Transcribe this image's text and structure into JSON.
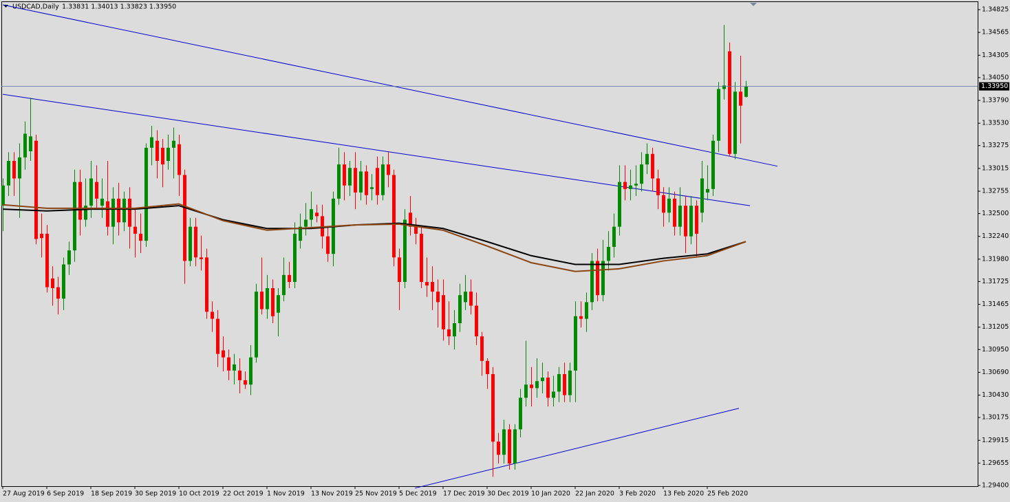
{
  "chart_data": {
    "type": "candlestick",
    "symbol": "USDCAD,Daily",
    "quote": "1.33831 1.34013 1.33823 1.33950",
    "current_price": {
      "value": 1.3395,
      "label": "1.33950"
    },
    "categories": [
      "27 Aug 2019",
      null,
      null,
      null,
      null,
      null,
      null,
      null,
      "6 Sep 2019",
      null,
      null,
      null,
      null,
      null,
      null,
      null,
      "18 Sep 2019",
      null,
      null,
      null,
      null,
      null,
      null,
      null,
      "30 Sep 2019",
      null,
      null,
      null,
      null,
      null,
      null,
      null,
      "10 Oct 2019",
      null,
      null,
      null,
      null,
      null,
      null,
      null,
      "22 Oct 2019",
      null,
      null,
      null,
      null,
      null,
      null,
      null,
      "1 Nov 2019",
      null,
      null,
      null,
      null,
      null,
      null,
      null,
      "13 Nov 2019",
      null,
      null,
      null,
      null,
      null,
      null,
      null,
      "25 Nov 2019",
      null,
      null,
      null,
      null,
      null,
      null,
      null,
      "5 Dec 2019",
      null,
      null,
      null,
      null,
      null,
      null,
      null,
      "17 Dec 2019",
      null,
      null,
      null,
      null,
      null,
      null,
      null,
      "30 Dec 2019",
      null,
      null,
      null,
      null,
      null,
      null,
      null,
      "10 Jan 2020",
      null,
      null,
      null,
      null,
      null,
      null,
      null,
      "22 Jan 2020",
      null,
      null,
      null,
      null,
      null,
      null,
      null,
      "3 Feb 2020",
      null,
      null,
      null,
      null,
      null,
      null,
      null,
      "13 Feb 2020",
      null,
      null,
      null,
      null,
      null,
      null,
      null,
      "25 Feb 2020",
      null,
      null,
      null,
      null,
      null,
      null,
      null
    ],
    "ohlc": [
      [
        1.3259,
        1.329,
        1.323,
        1.3282
      ],
      [
        1.3282,
        1.332,
        1.327,
        1.331
      ],
      [
        1.331,
        1.332,
        1.327,
        1.329
      ],
      [
        1.329,
        1.333,
        1.3245,
        1.3314
      ],
      [
        1.3314,
        1.3355,
        1.33,
        1.3341
      ],
      [
        1.3321,
        1.3382,
        1.331,
        1.3338
      ],
      [
        1.3333,
        1.334,
        1.3215,
        1.3221
      ],
      [
        1.3227,
        1.325,
        1.32,
        1.3222
      ],
      [
        1.3227,
        1.3237,
        1.316,
        1.3166
      ],
      [
        1.3176,
        1.319,
        1.3145,
        1.3165
      ],
      [
        1.3166,
        1.3178,
        1.3135,
        1.3153
      ],
      [
        1.3153,
        1.32,
        1.314,
        1.3192
      ],
      [
        1.3192,
        1.3218,
        1.318,
        1.3208
      ],
      [
        1.3208,
        1.33,
        1.3195,
        1.3286
      ],
      [
        1.3286,
        1.33,
        1.3225,
        1.3243
      ],
      [
        1.3243,
        1.329,
        1.3235,
        1.3259
      ],
      [
        1.3259,
        1.331,
        1.3245,
        1.329
      ],
      [
        1.3286,
        1.3305,
        1.3255,
        1.3267
      ],
      [
        1.3259,
        1.329,
        1.3245,
        1.3267
      ],
      [
        1.3264,
        1.331,
        1.3225,
        1.3235
      ],
      [
        1.3235,
        1.328,
        1.3215,
        1.3267
      ],
      [
        1.3267,
        1.3285,
        1.3225,
        1.324
      ],
      [
        1.324,
        1.3275,
        1.323,
        1.3267
      ],
      [
        1.3267,
        1.328,
        1.321,
        1.3235
      ],
      [
        1.3235,
        1.3255,
        1.32,
        1.3227
      ],
      [
        1.3227,
        1.325,
        1.3205,
        1.3219
      ],
      [
        1.3219,
        1.333,
        1.3212,
        1.3325
      ],
      [
        1.3325,
        1.335,
        1.3305,
        1.3337
      ],
      [
        1.3333,
        1.3345,
        1.329,
        1.331
      ],
      [
        1.3325,
        1.3335,
        1.328,
        1.3306
      ],
      [
        1.331,
        1.334,
        1.33,
        1.3325
      ],
      [
        1.3325,
        1.3348,
        1.329,
        1.3333
      ],
      [
        1.3329,
        1.334,
        1.327,
        1.3294
      ],
      [
        1.3294,
        1.33,
        1.317,
        1.3196
      ],
      [
        1.3196,
        1.3245,
        1.319,
        1.3235
      ],
      [
        1.3235,
        1.3245,
        1.319,
        1.32
      ],
      [
        1.32,
        1.3225,
        1.3185,
        1.3198
      ],
      [
        1.32,
        1.321,
        1.313,
        1.3138
      ],
      [
        1.3138,
        1.315,
        1.3115,
        1.313
      ],
      [
        1.313,
        1.314,
        1.3075,
        1.309
      ],
      [
        1.3094,
        1.311,
        1.307,
        1.3086
      ],
      [
        1.3086,
        1.3095,
        1.306,
        1.3071
      ],
      [
        1.3071,
        1.309,
        1.3055,
        1.3078
      ],
      [
        1.3071,
        1.3085,
        1.3045,
        1.306
      ],
      [
        1.306,
        1.307,
        1.305,
        1.3055
      ],
      [
        1.3055,
        1.31,
        1.3043,
        1.3086
      ],
      [
        1.3086,
        1.317,
        1.308,
        1.3161
      ],
      [
        1.3161,
        1.32,
        1.3135,
        1.3141
      ],
      [
        1.3141,
        1.318,
        1.313,
        1.3165
      ],
      [
        1.3165,
        1.3175,
        1.3125,
        1.3133
      ],
      [
        1.3137,
        1.3165,
        1.311,
        1.3157
      ],
      [
        1.3157,
        1.32,
        1.315,
        1.318
      ],
      [
        1.318,
        1.3195,
        1.3165,
        1.3172
      ],
      [
        1.3172,
        1.324,
        1.3165,
        1.3227
      ],
      [
        1.3219,
        1.325,
        1.321,
        1.3235
      ],
      [
        1.3235,
        1.3262,
        1.3225,
        1.3243
      ],
      [
        1.3243,
        1.3275,
        1.3235,
        1.3255
      ],
      [
        1.3251,
        1.326,
        1.324,
        1.3247
      ],
      [
        1.3247,
        1.326,
        1.321,
        1.3224
      ],
      [
        1.3224,
        1.3235,
        1.3195,
        1.3204
      ],
      [
        1.3204,
        1.3275,
        1.319,
        1.3267
      ],
      [
        1.3267,
        1.3325,
        1.326,
        1.3306
      ],
      [
        1.3306,
        1.332,
        1.3265,
        1.3282
      ],
      [
        1.3282,
        1.331,
        1.327,
        1.3302
      ],
      [
        1.3302,
        1.332,
        1.3255,
        1.3274
      ],
      [
        1.3274,
        1.331,
        1.3265,
        1.3298
      ],
      [
        1.3298,
        1.3305,
        1.326,
        1.3271
      ],
      [
        1.3278,
        1.3295,
        1.3265,
        1.328
      ],
      [
        1.3302,
        1.3315,
        1.326,
        1.3271
      ],
      [
        1.3271,
        1.3315,
        1.3265,
        1.3306
      ],
      [
        1.3306,
        1.332,
        1.328,
        1.3294
      ],
      [
        1.3294,
        1.33,
        1.319,
        1.32
      ],
      [
        1.32,
        1.321,
        1.314,
        1.3172
      ],
      [
        1.3172,
        1.3255,
        1.3165,
        1.3243
      ],
      [
        1.3251,
        1.327,
        1.3225,
        1.3235
      ],
      [
        1.3235,
        1.3245,
        1.3215,
        1.3227
      ],
      [
        1.3227,
        1.3235,
        1.3165,
        1.3172
      ],
      [
        1.3172,
        1.32,
        1.3155,
        1.3168
      ],
      [
        1.3172,
        1.319,
        1.314,
        1.3161
      ],
      [
        1.3161,
        1.3175,
        1.312,
        1.3149
      ],
      [
        1.3157,
        1.3175,
        1.3105,
        1.3118
      ],
      [
        1.3118,
        1.315,
        1.31,
        1.311
      ],
      [
        1.311,
        1.314,
        1.3095,
        1.3125
      ],
      [
        1.3125,
        1.317,
        1.3115,
        1.3157
      ],
      [
        1.3149,
        1.318,
        1.314,
        1.3161
      ],
      [
        1.3161,
        1.3175,
        1.3135,
        1.3145
      ],
      [
        1.3145,
        1.316,
        1.31,
        1.311
      ],
      [
        1.311,
        1.3115,
        1.3065,
        1.3082
      ],
      [
        1.3082,
        1.3085,
        1.305,
        1.3067
      ],
      [
        1.3067,
        1.3075,
        1.295,
        1.299
      ],
      [
        1.299,
        1.3,
        1.2965,
        1.2975
      ],
      [
        1.2975,
        1.3015,
        1.2965,
        1.3004
      ],
      [
        1.3004,
        1.301,
        1.2958,
        1.2965
      ],
      [
        1.2965,
        1.301,
        1.2958,
        1.3004
      ],
      [
        1.3004,
        1.305,
        1.2995,
        1.304
      ],
      [
        1.304,
        1.3105,
        1.303,
        1.3055
      ],
      [
        1.3055,
        1.3075,
        1.303,
        1.3051
      ],
      [
        1.3051,
        1.3085,
        1.304,
        1.3059
      ],
      [
        1.3059,
        1.308,
        1.3045,
        1.3063
      ],
      [
        1.3063,
        1.307,
        1.303,
        1.304
      ],
      [
        1.304,
        1.3065,
        1.303,
        1.3047
      ],
      [
        1.3047,
        1.3075,
        1.3035,
        1.3067
      ],
      [
        1.3067,
        1.308,
        1.3035,
        1.3043
      ],
      [
        1.3043,
        1.308,
        1.3035,
        1.3071
      ],
      [
        1.3071,
        1.315,
        1.3035,
        1.3133
      ],
      [
        1.3133,
        1.315,
        1.312,
        1.313
      ],
      [
        1.313,
        1.316,
        1.3115,
        1.3149
      ],
      [
        1.3149,
        1.3205,
        1.314,
        1.3196
      ],
      [
        1.3196,
        1.321,
        1.315,
        1.3157
      ],
      [
        1.3157,
        1.322,
        1.315,
        1.3196
      ],
      [
        1.3196,
        1.323,
        1.3185,
        1.3212
      ],
      [
        1.3212,
        1.325,
        1.32,
        1.3235
      ],
      [
        1.3235,
        1.3305,
        1.3225,
        1.3286
      ],
      [
        1.3286,
        1.3305,
        1.3265,
        1.3278
      ],
      [
        1.3278,
        1.33,
        1.3265,
        1.3282
      ],
      [
        1.3282,
        1.3305,
        1.327,
        1.3284
      ],
      [
        1.3284,
        1.332,
        1.3275,
        1.3306
      ],
      [
        1.3306,
        1.333,
        1.3295,
        1.3318
      ],
      [
        1.3318,
        1.3325,
        1.3275,
        1.329
      ],
      [
        1.329,
        1.33,
        1.3255,
        1.3271
      ],
      [
        1.3271,
        1.328,
        1.3235,
        1.3251
      ],
      [
        1.3251,
        1.328,
        1.324,
        1.3267
      ],
      [
        1.3267,
        1.3275,
        1.3225,
        1.3235
      ],
      [
        1.3235,
        1.328,
        1.3225,
        1.3259
      ],
      [
        1.3259,
        1.327,
        1.3205,
        1.3224
      ],
      [
        1.3224,
        1.327,
        1.3215,
        1.3259
      ],
      [
        1.3259,
        1.3265,
        1.32,
        1.3227
      ],
      [
        1.3251,
        1.331,
        1.324,
        1.329
      ],
      [
        1.3274,
        1.3305,
        1.3265,
        1.3278
      ],
      [
        1.3278,
        1.334,
        1.327,
        1.3333
      ],
      [
        1.3333,
        1.34,
        1.332,
        1.3392
      ],
      [
        1.3392,
        1.3465,
        1.338,
        1.3396
      ],
      [
        1.3435,
        1.3445,
        1.3315,
        1.3318
      ],
      [
        1.3318,
        1.34,
        1.3312,
        1.3389
      ],
      [
        1.3389,
        1.343,
        1.333,
        1.3373
      ],
      [
        1.33831,
        1.34013,
        1.33823,
        1.3395
      ]
    ],
    "up_color": "#008a00",
    "down_color": "#ff0000",
    "ma": [
      {
        "color": "#000000",
        "x": [
          0,
          8,
          16,
          24,
          32,
          40,
          48,
          56,
          64,
          72,
          80,
          88,
          96,
          104,
          112,
          120,
          128,
          135
        ],
        "values": [
          1.3255,
          1.3253,
          1.3255,
          1.3255,
          1.3259,
          1.3243,
          1.3233,
          1.3233,
          1.3237,
          1.3239,
          1.3233,
          1.3218,
          1.3202,
          1.3192,
          1.3192,
          1.3199,
          1.3204,
          1.3218
        ]
      },
      {
        "color": "#8b4513",
        "x": [
          0,
          8,
          16,
          24,
          32,
          40,
          48,
          56,
          64,
          72,
          80,
          88,
          96,
          104,
          112,
          120,
          128,
          135
        ],
        "values": [
          1.326,
          1.3256,
          1.3256,
          1.3256,
          1.3261,
          1.3242,
          1.3231,
          1.3234,
          1.3237,
          1.3238,
          1.3231,
          1.3213,
          1.3194,
          1.3184,
          1.3187,
          1.3196,
          1.3202,
          1.3218
        ]
      }
    ],
    "trendlines": [
      {
        "x": [
          0,
          140.75
        ],
        "values": [
          1.3488,
          1.3304
        ]
      },
      {
        "x": [
          0,
          135.75
        ],
        "values": [
          1.3386,
          1.3259
        ]
      },
      {
        "x": [
          74.9,
          133.75
        ],
        "values": [
          1.2937,
          1.3028
        ]
      }
    ],
    "trend_color": "#0000cd",
    "ylim": [
      1.29392,
      1.34919
    ],
    "yticks": [
      {
        "value": 1.34825,
        "label": "1.34825"
      },
      {
        "value": 1.34565,
        "label": "1.34565"
      },
      {
        "value": 1.34305,
        "label": "1.34305"
      },
      {
        "value": 1.3405,
        "label": "1.34050"
      },
      {
        "value": 1.3379,
        "label": "1.33790"
      },
      {
        "value": 1.3353,
        "label": "1.33530"
      },
      {
        "value": 1.33275,
        "label": "1.33275"
      },
      {
        "value": 1.33015,
        "label": "1.33015"
      },
      {
        "value": 1.32755,
        "label": "1.32755"
      },
      {
        "value": 1.325,
        "label": "1.32500"
      },
      {
        "value": 1.3224,
        "label": "1.32240"
      },
      {
        "value": 1.3198,
        "label": "1.31980"
      },
      {
        "value": 1.31725,
        "label": "1.31725"
      },
      {
        "value": 1.31465,
        "label": "1.31465"
      },
      {
        "value": 1.31205,
        "label": "1.31205"
      },
      {
        "value": 1.3095,
        "label": "1.30950"
      },
      {
        "value": 1.3069,
        "label": "1.30690"
      },
      {
        "value": 1.3043,
        "label": "1.30430"
      },
      {
        "value": 1.30175,
        "label": "1.30175"
      },
      {
        "value": 1.29915,
        "label": "1.29915"
      },
      {
        "value": 1.29655,
        "label": "1.29655"
      },
      {
        "value": 1.294,
        "label": "1.29400"
      }
    ]
  }
}
